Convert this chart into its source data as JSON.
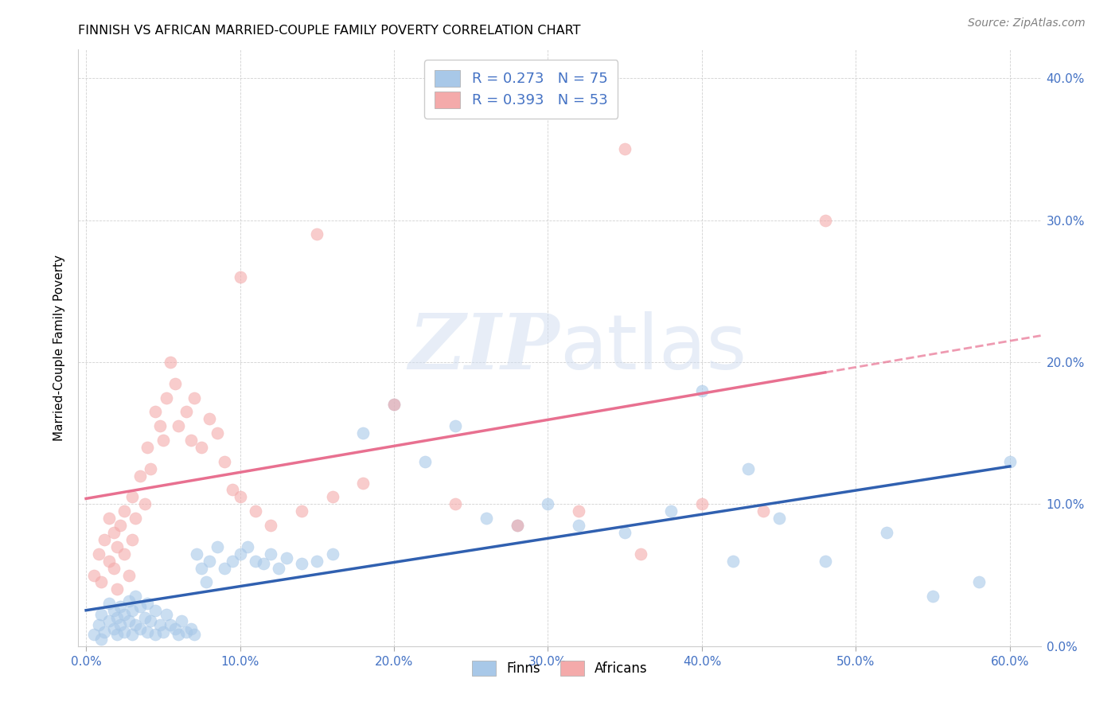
{
  "title": "FINNISH VS AFRICAN MARRIED-COUPLE FAMILY POVERTY CORRELATION CHART",
  "source": "Source: ZipAtlas.com",
  "ylabel": "Married-Couple Family Poverty",
  "xlabel_vals": [
    0.0,
    0.1,
    0.2,
    0.3,
    0.4,
    0.5,
    0.6
  ],
  "ylabel_vals": [
    0.0,
    0.1,
    0.2,
    0.3,
    0.4
  ],
  "ylim": [
    0.0,
    0.42
  ],
  "xlim": [
    -0.005,
    0.62
  ],
  "finns_color": "#a8c8e8",
  "africans_color": "#f4aaaa",
  "finn_line_color": "#3060b0",
  "african_line_color": "#e87090",
  "watermark_text": "ZIPatlas",
  "legend_R1": "R = 0.273",
  "legend_N1": "N = 75",
  "legend_R2": "R = 0.393",
  "legend_N2": "N = 53",
  "finns_x": [
    0.005,
    0.008,
    0.01,
    0.01,
    0.012,
    0.015,
    0.015,
    0.018,
    0.018,
    0.02,
    0.02,
    0.022,
    0.022,
    0.025,
    0.025,
    0.028,
    0.028,
    0.03,
    0.03,
    0.032,
    0.032,
    0.035,
    0.035,
    0.038,
    0.04,
    0.04,
    0.042,
    0.045,
    0.045,
    0.048,
    0.05,
    0.052,
    0.055,
    0.058,
    0.06,
    0.062,
    0.065,
    0.068,
    0.07,
    0.072,
    0.075,
    0.078,
    0.08,
    0.085,
    0.09,
    0.095,
    0.1,
    0.105,
    0.11,
    0.115,
    0.12,
    0.125,
    0.13,
    0.14,
    0.15,
    0.16,
    0.18,
    0.2,
    0.22,
    0.24,
    0.26,
    0.28,
    0.3,
    0.32,
    0.35,
    0.38,
    0.42,
    0.45,
    0.48,
    0.52,
    0.55,
    0.58,
    0.6,
    0.4,
    0.43
  ],
  "finns_y": [
    0.008,
    0.015,
    0.005,
    0.022,
    0.01,
    0.018,
    0.03,
    0.012,
    0.025,
    0.008,
    0.02,
    0.015,
    0.028,
    0.01,
    0.022,
    0.018,
    0.032,
    0.008,
    0.025,
    0.015,
    0.035,
    0.012,
    0.028,
    0.02,
    0.01,
    0.03,
    0.018,
    0.008,
    0.025,
    0.015,
    0.01,
    0.022,
    0.015,
    0.012,
    0.008,
    0.018,
    0.01,
    0.012,
    0.008,
    0.065,
    0.055,
    0.045,
    0.06,
    0.07,
    0.055,
    0.06,
    0.065,
    0.07,
    0.06,
    0.058,
    0.065,
    0.055,
    0.062,
    0.058,
    0.06,
    0.065,
    0.15,
    0.17,
    0.13,
    0.155,
    0.09,
    0.085,
    0.1,
    0.085,
    0.08,
    0.095,
    0.06,
    0.09,
    0.06,
    0.08,
    0.035,
    0.045,
    0.13,
    0.18,
    0.125
  ],
  "africans_x": [
    0.005,
    0.008,
    0.01,
    0.012,
    0.015,
    0.015,
    0.018,
    0.018,
    0.02,
    0.02,
    0.022,
    0.025,
    0.025,
    0.028,
    0.03,
    0.03,
    0.032,
    0.035,
    0.038,
    0.04,
    0.042,
    0.045,
    0.048,
    0.05,
    0.052,
    0.055,
    0.058,
    0.06,
    0.065,
    0.068,
    0.07,
    0.075,
    0.08,
    0.085,
    0.09,
    0.095,
    0.1,
    0.11,
    0.12,
    0.14,
    0.16,
    0.18,
    0.2,
    0.24,
    0.28,
    0.32,
    0.36,
    0.4,
    0.44,
    0.48,
    0.15,
    0.1,
    0.35
  ],
  "africans_y": [
    0.05,
    0.065,
    0.045,
    0.075,
    0.06,
    0.09,
    0.055,
    0.08,
    0.07,
    0.04,
    0.085,
    0.065,
    0.095,
    0.05,
    0.075,
    0.105,
    0.09,
    0.12,
    0.1,
    0.14,
    0.125,
    0.165,
    0.155,
    0.145,
    0.175,
    0.2,
    0.185,
    0.155,
    0.165,
    0.145,
    0.175,
    0.14,
    0.16,
    0.15,
    0.13,
    0.11,
    0.105,
    0.095,
    0.085,
    0.095,
    0.105,
    0.115,
    0.17,
    0.1,
    0.085,
    0.095,
    0.065,
    0.1,
    0.095,
    0.3,
    0.29,
    0.26,
    0.35
  ]
}
